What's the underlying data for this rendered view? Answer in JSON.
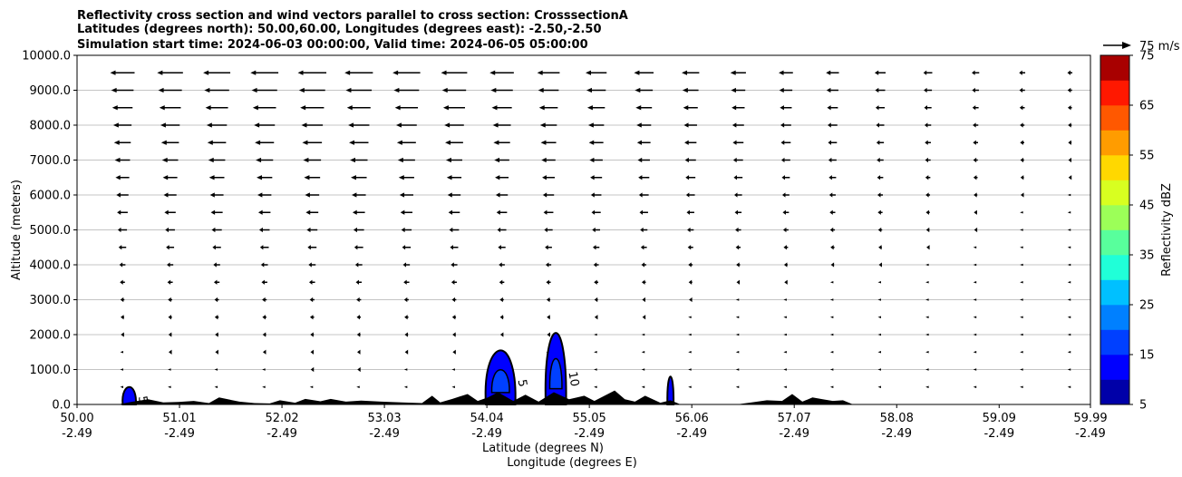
{
  "chart_data": {
    "type": "contour",
    "title": [
      "Reflectivity cross section and wind vectors parallel to cross section: CrosssectionA",
      "Latitudes (degrees north): 50.00,60.00, Longitudes (degrees east): -2.50,-2.50",
      "Simulation start time: 2024-06-03 00:00:00, Valid time: 2024-06-05 05:00:00"
    ],
    "xlabel": "Latitude (degrees N)",
    "xlabel2": "Longitude (degrees E)",
    "ylabel": "Altitude (meters)",
    "xlim": [
      50.0,
      59.99
    ],
    "ylim": [
      0,
      10000
    ],
    "grid": "horizontal",
    "x_ticks": [
      {
        "lat": 50.0,
        "label": "50.00",
        "lon": "-2.49"
      },
      {
        "lat": 51.01,
        "label": "51.01",
        "lon": "-2.49"
      },
      {
        "lat": 52.02,
        "label": "52.02",
        "lon": "-2.49"
      },
      {
        "lat": 53.03,
        "label": "53.03",
        "lon": "-2.49"
      },
      {
        "lat": 54.04,
        "label": "54.04",
        "lon": "-2.49"
      },
      {
        "lat": 55.05,
        "label": "55.05",
        "lon": "-2.49"
      },
      {
        "lat": 56.06,
        "label": "56.06",
        "lon": "-2.49"
      },
      {
        "lat": 57.07,
        "label": "57.07",
        "lon": "-2.49"
      },
      {
        "lat": 58.08,
        "label": "58.08",
        "lon": "-2.49"
      },
      {
        "lat": 59.09,
        "label": "59.09",
        "lon": "-2.49"
      },
      {
        "lat": 59.99,
        "label": "59.99",
        "lon": "-2.49"
      }
    ],
    "y_ticks": [
      {
        "value": 0,
        "label": "0.0"
      },
      {
        "value": 1000,
        "label": "1000.0"
      },
      {
        "value": 2000,
        "label": "2000.0"
      },
      {
        "value": 3000,
        "label": "3000.0"
      },
      {
        "value": 4000,
        "label": "4000.0"
      },
      {
        "value": 5000,
        "label": "5000.0"
      },
      {
        "value": 6000,
        "label": "6000.0"
      },
      {
        "value": 7000,
        "label": "7000.0"
      },
      {
        "value": 8000,
        "label": "8000.0"
      },
      {
        "value": 9000,
        "label": "9000.0"
      },
      {
        "value": 10000,
        "label": "10000.0"
      }
    ],
    "wind_reference": {
      "label": "75 m/s",
      "speed": 75
    },
    "wind_levels_m": [
      500,
      1000,
      1500,
      2000,
      2500,
      3000,
      3500,
      4000,
      4500,
      5000,
      5500,
      6000,
      6500,
      7000,
      7500,
      8000,
      8500,
      9000,
      9500
    ],
    "wind_columns_lat": [
      50.0,
      50.47,
      50.93,
      51.4,
      51.87,
      52.33,
      52.8,
      53.27,
      53.74,
      54.2,
      54.67,
      55.14,
      55.6,
      56.07,
      56.54,
      57.0,
      57.47,
      57.94,
      58.41,
      58.87,
      59.34,
      59.81
    ],
    "wind_u_profile": {
      "lat": [
        50.0,
        51.0,
        52.0,
        53.0,
        54.0,
        55.0,
        56.0,
        57.0,
        58.0,
        59.0,
        60.0
      ],
      "factor": [
        0.85,
        0.95,
        1.0,
        0.95,
        0.8,
        0.7,
        0.55,
        0.45,
        0.3,
        0.2,
        0.12
      ]
    },
    "wind_u_levels": {
      "alt_m": [
        500,
        2000,
        3000,
        4000,
        5000,
        6000,
        7000,
        8000,
        9000,
        9500
      ],
      "u_ms": [
        -2,
        -3,
        -4,
        -6,
        -9,
        -12,
        -15,
        -18,
        -22,
        -24
      ]
    },
    "colorbar": {
      "label": "Reflectivity dBZ",
      "levels": [
        5,
        10,
        15,
        20,
        25,
        30,
        35,
        40,
        45,
        50,
        55,
        60,
        65,
        70,
        75
      ],
      "tick_labels": [
        "5",
        "15",
        "25",
        "35",
        "45",
        "55",
        "65",
        "75"
      ],
      "colors": [
        "#0000a8",
        "#0000ff",
        "#0040ff",
        "#0080ff",
        "#00c0ff",
        "#20ffd8",
        "#58ff9c",
        "#9cff58",
        "#d8ff20",
        "#ffd800",
        "#ff9c00",
        "#ff5800",
        "#ff1800",
        "#a80000"
      ]
    },
    "reflectivity_cells": [
      {
        "lat_range": [
          50.45,
          50.58
        ],
        "top_m": 500,
        "max_dbz": 12,
        "contour_labels": [
          "5"
        ]
      },
      {
        "lat_range": [
          54.03,
          54.32
        ],
        "top_m": 1550,
        "max_dbz": 16,
        "contour_labels": [
          "5"
        ]
      },
      {
        "lat_range": [
          54.62,
          54.82
        ],
        "top_m": 2050,
        "max_dbz": 18,
        "contour_labels": [
          "10"
        ]
      },
      {
        "lat_range": [
          55.82,
          55.88
        ],
        "top_m": 800,
        "max_dbz": 10,
        "contour_labels": []
      }
    ],
    "terrain": {
      "lat": [
        50.0,
        50.4,
        50.55,
        50.7,
        50.85,
        51.0,
        51.15,
        51.3,
        51.4,
        51.6,
        51.75,
        51.9,
        52.0,
        52.15,
        52.25,
        52.4,
        52.5,
        52.65,
        52.8,
        53.0,
        53.2,
        53.4,
        53.5,
        53.58,
        53.7,
        53.85,
        53.95,
        54.05,
        54.15,
        54.3,
        54.42,
        54.55,
        54.7,
        54.85,
        55.0,
        55.1,
        55.2,
        55.3,
        55.4,
        55.5,
        55.6,
        55.75,
        55.85,
        55.95,
        56.1,
        56.3,
        56.5,
        56.65,
        56.8,
        56.95,
        57.05,
        57.15,
        57.25,
        57.35,
        57.45,
        57.55,
        57.65,
        58.0,
        60.0
      ],
      "height_m": [
        0,
        0,
        80,
        150,
        60,
        70,
        100,
        40,
        200,
        80,
        40,
        30,
        120,
        50,
        160,
        90,
        160,
        80,
        110,
        80,
        60,
        40,
        250,
        60,
        160,
        300,
        100,
        200,
        350,
        100,
        280,
        80,
        350,
        150,
        250,
        100,
        250,
        400,
        150,
        80,
        250,
        50,
        120,
        0,
        0,
        0,
        0,
        60,
        120,
        100,
        300,
        80,
        200,
        150,
        100,
        120,
        0,
        0,
        0
      ]
    }
  }
}
